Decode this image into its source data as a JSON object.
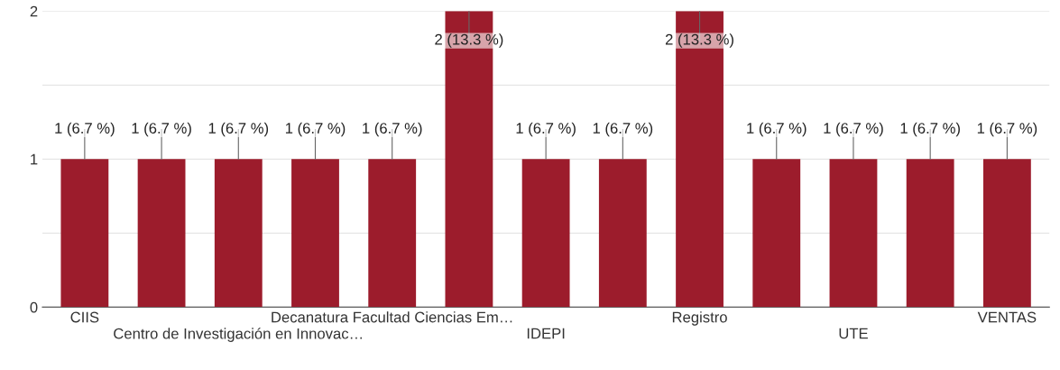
{
  "chart_data": {
    "type": "bar",
    "categories": [
      "CIIS",
      null,
      "Centro de Investigación en Innovac…",
      null,
      "Decanatura Facultad Ciencias Em…",
      null,
      "IDEPI",
      null,
      "Registro",
      null,
      "UTE",
      null,
      "VENTAS"
    ],
    "values": [
      1,
      1,
      1,
      1,
      1,
      2,
      1,
      1,
      2,
      1,
      1,
      1,
      1
    ],
    "value_labels": [
      "1 (6.7 %)",
      "1 (6.7 %)",
      "1 (6.7 %)",
      "1 (6.7 %)",
      "1 (6.7 %)",
      "2 (13.3 %)",
      "1 (6.7 %)",
      "1 (6.7 %)",
      "2 (13.3 %)",
      "1 (6.7 %)",
      "1 (6.7 %)",
      "1 (6.7 %)",
      "1 (6.7 %)"
    ],
    "color": "#9c1c2c",
    "ylim": [
      0,
      2
    ],
    "yticks": [
      0,
      {
        "value": 0.5,
        "label": null
      },
      1,
      {
        "value": 1.5,
        "label": null
      },
      2
    ],
    "grid": "y"
  }
}
